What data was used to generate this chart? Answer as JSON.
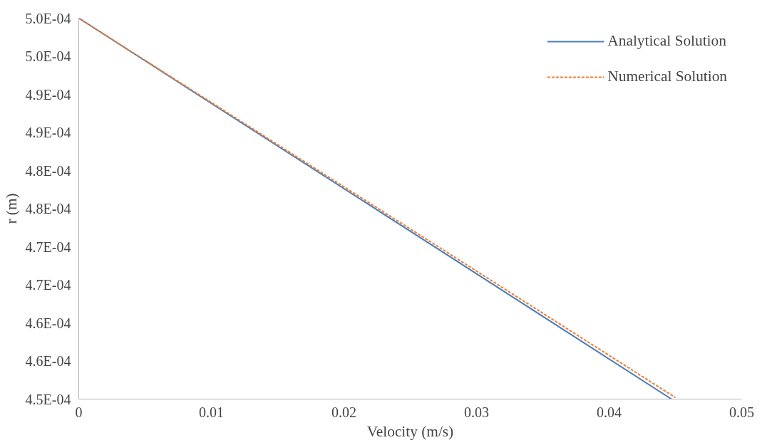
{
  "chart_data": {
    "type": "line",
    "xlabel": "Velocity (m/s)",
    "ylabel": "r (m)",
    "xlim": [
      0,
      0.05
    ],
    "xticks": [
      0,
      0.01,
      0.02,
      0.03,
      0.04,
      0.05
    ],
    "ylim": [
      0.00045,
      0.0005
    ],
    "yticks": [
      {
        "value": 0.00045,
        "label": "4.5E-04"
      },
      {
        "value": 0.000455,
        "label": "4.6E-04"
      },
      {
        "value": 0.00046,
        "label": "4.6E-04"
      },
      {
        "value": 0.000465,
        "label": "4.7E-04"
      },
      {
        "value": 0.00047,
        "label": "4.7E-04"
      },
      {
        "value": 0.000475,
        "label": "4.8E-04"
      },
      {
        "value": 0.00048,
        "label": "4.8E-04"
      },
      {
        "value": 0.000485,
        "label": "4.9E-04"
      },
      {
        "value": 0.00049,
        "label": "4.9E-04"
      },
      {
        "value": 0.000495,
        "label": "5.0E-04"
      },
      {
        "value": 0.0005,
        "label": "5.0E-04"
      }
    ],
    "grid": false,
    "legend": "top right",
    "series": [
      {
        "name": "Analytical Solution",
        "color": "#4a7ebb",
        "line_style": "solid",
        "x": [
          0,
          0.0447
        ],
        "values": [
          0.0005,
          0.00045
        ]
      },
      {
        "name": "Numerical Solution",
        "color": "#ed7d31",
        "line_style": "dashed",
        "x": [
          0,
          0.045
        ],
        "values": [
          0.0005,
          0.0004502
        ]
      }
    ]
  }
}
